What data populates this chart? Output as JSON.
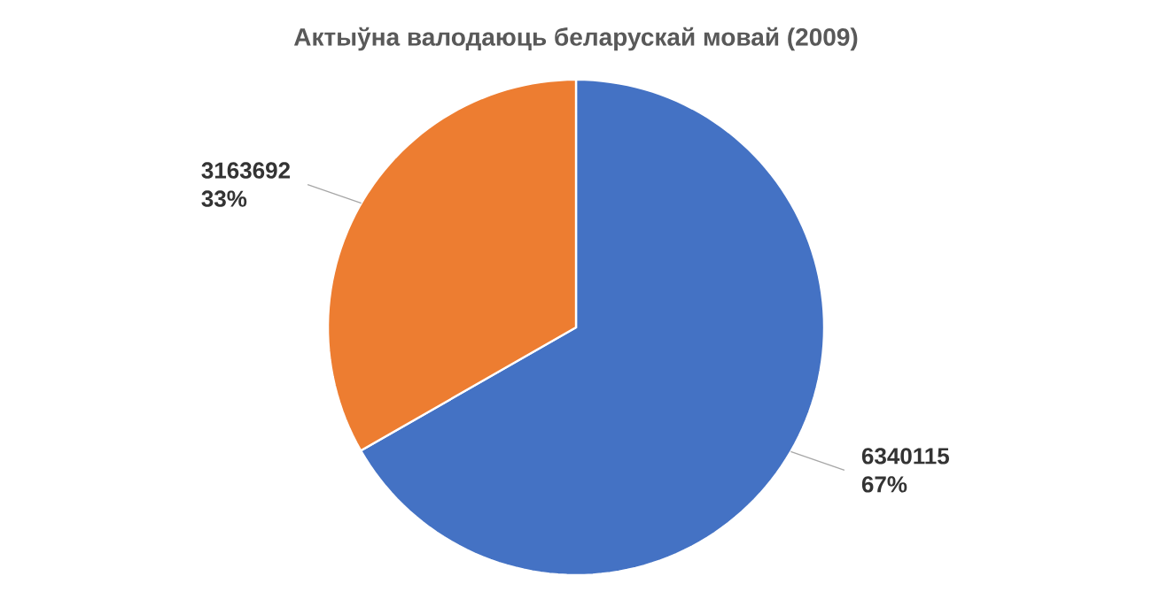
{
  "chart_data": {
    "type": "pie",
    "title": "Актыўна валодаюць беларускай мовай (2009)",
    "categories": [
      null,
      null
    ],
    "values": [
      6340115,
      3163692
    ],
    "colors": [
      "#4472c4",
      "#ed7d31"
    ],
    "value_labels": [
      "6340115",
      "3163692"
    ],
    "annotations": [
      "67%",
      "33%"
    ]
  }
}
